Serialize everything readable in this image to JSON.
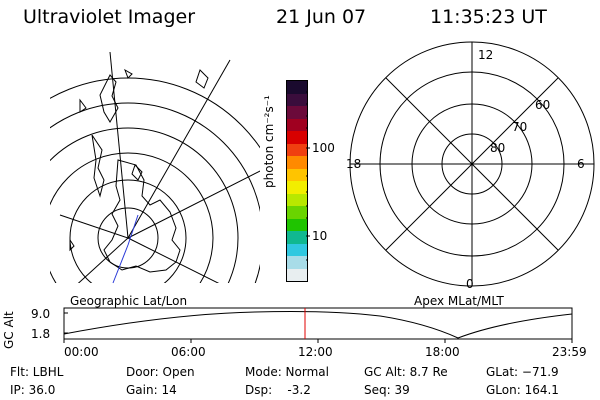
{
  "header": {
    "instrument": "Ultraviolet Imager",
    "date": "21 Jun 07",
    "time": "11:35:23 UT"
  },
  "colorbar": {
    "unit_label": "photon cm⁻²s⁻¹",
    "tick_100": "100",
    "tick_10": "10",
    "colors": [
      "#1a0a2e",
      "#3a0d3c",
      "#6b0a3a",
      "#a00020",
      "#d80000",
      "#f04010",
      "#ff8a00",
      "#ffc400",
      "#f2ee00",
      "#b8e800",
      "#6ad400",
      "#1fc400",
      "#10b890",
      "#30c8e0",
      "#a8dce8",
      "#e8eef0"
    ]
  },
  "geo_map": {
    "label": "Geographic Lat/Lon"
  },
  "polar_plot": {
    "label": "Apex MLat/MLT",
    "mlt_top": "12",
    "mlt_left": "18",
    "mlt_right": "6",
    "mlt_bottom": "0",
    "lat_60": "60",
    "lat_70": "70",
    "lat_80": "80"
  },
  "altitude_plot": {
    "ylabel": "GC Alt",
    "y_top": "9.0",
    "y_bottom": "1.8",
    "x_ticks": [
      "00:00",
      "06:00",
      "12:00",
      "18:00",
      "23:59"
    ],
    "marker_color": "#e00000"
  },
  "status": {
    "filter": "Flt: LBHL",
    "ip": "IP: 36.0",
    "door": "Door: Open",
    "gain": "Gain: 14",
    "mode": "Mode: Normal",
    "dsp": "Dsp:    -3.2",
    "gc_alt": "GC Alt: 8.7 Re",
    "seq": "Seq: 39",
    "glat": "GLat: −71.9",
    "glon": "GLon: 164.1"
  }
}
